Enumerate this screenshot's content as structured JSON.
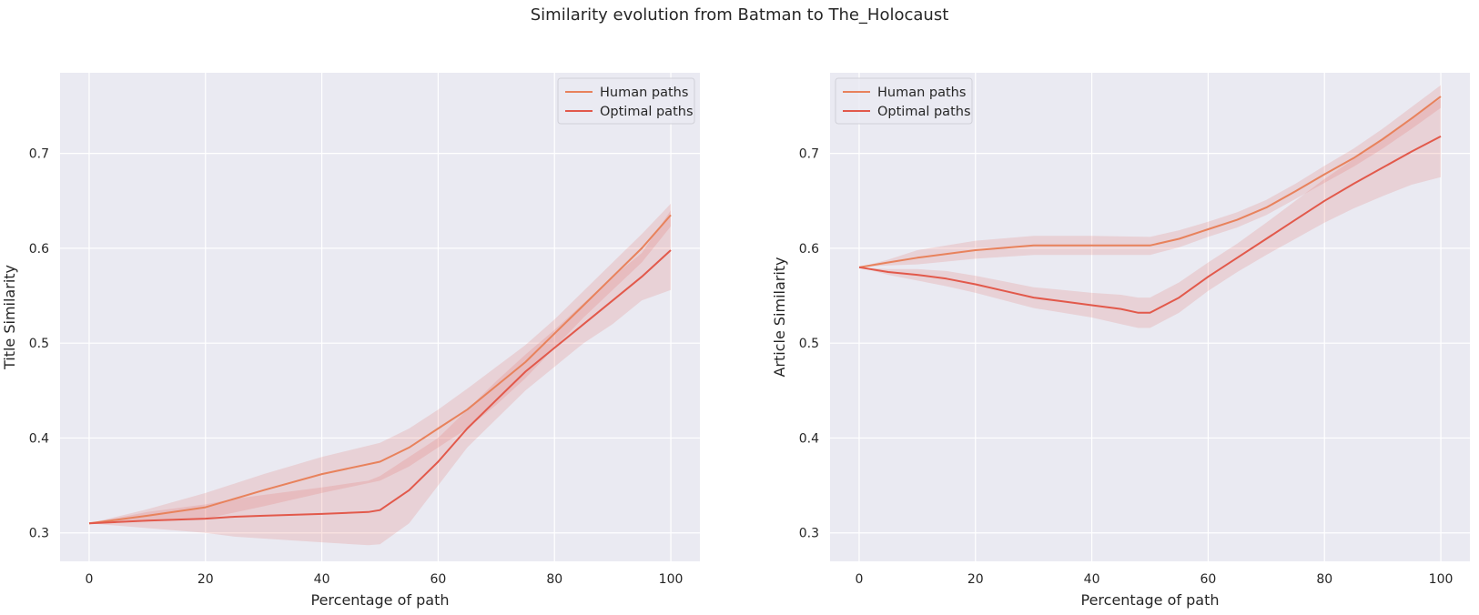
{
  "figure": {
    "title": "Similarity evolution from Batman to The_Holocaust"
  },
  "colors": {
    "human": "#e8825c",
    "optimal": "#e2594b",
    "band": "#e2594b",
    "axes_bg": "#eaeaf2",
    "grid": "#ffffff"
  },
  "chart_data": [
    {
      "type": "line",
      "title": "",
      "xlabel": "Percentage of path",
      "ylabel": "Title Similarity",
      "xlim": [
        -5,
        105
      ],
      "ylim": [
        0.27,
        0.785
      ],
      "xticks": [
        0,
        20,
        40,
        60,
        80,
        100
      ],
      "yticks": [
        0.3,
        0.4,
        0.5,
        0.6,
        0.7
      ],
      "grid": true,
      "legend": "upper right",
      "series": [
        {
          "name": "Human paths",
          "color": "#e8825c",
          "x": [
            0,
            10,
            20,
            30,
            40,
            50,
            55,
            60,
            65,
            70,
            75,
            80,
            85,
            90,
            95,
            100
          ],
          "y": [
            0.31,
            0.318,
            0.327,
            0.345,
            0.362,
            0.375,
            0.39,
            0.41,
            0.43,
            0.455,
            0.48,
            0.51,
            0.54,
            0.57,
            0.6,
            0.635
          ],
          "lower": [
            0.31,
            0.312,
            0.315,
            0.328,
            0.342,
            0.355,
            0.37,
            0.39,
            0.41,
            0.435,
            0.463,
            0.495,
            0.527,
            0.556,
            0.585,
            0.623
          ],
          "upper": [
            0.31,
            0.325,
            0.342,
            0.362,
            0.38,
            0.395,
            0.41,
            0.43,
            0.452,
            0.475,
            0.498,
            0.525,
            0.555,
            0.585,
            0.615,
            0.647
          ]
        },
        {
          "name": "Optimal paths",
          "color": "#e2594b",
          "x": [
            0,
            10,
            20,
            25,
            30,
            40,
            48,
            50,
            55,
            60,
            65,
            70,
            75,
            80,
            85,
            90,
            95,
            100
          ],
          "y": [
            0.31,
            0.313,
            0.315,
            0.317,
            0.318,
            0.32,
            0.322,
            0.324,
            0.345,
            0.375,
            0.41,
            0.44,
            0.47,
            0.495,
            0.52,
            0.545,
            0.57,
            0.598
          ],
          "lower": [
            0.31,
            0.305,
            0.3,
            0.296,
            0.294,
            0.29,
            0.287,
            0.288,
            0.31,
            0.35,
            0.39,
            0.42,
            0.45,
            0.475,
            0.5,
            0.52,
            0.545,
            0.556
          ],
          "upper": [
            0.31,
            0.322,
            0.33,
            0.336,
            0.34,
            0.348,
            0.355,
            0.36,
            0.38,
            0.4,
            0.43,
            0.46,
            0.488,
            0.514,
            0.542,
            0.57,
            0.595,
            0.64
          ]
        }
      ]
    },
    {
      "type": "line",
      "title": "",
      "xlabel": "Percentage of path",
      "ylabel": "Article Similarity",
      "xlim": [
        -5,
        105
      ],
      "ylim": [
        0.27,
        0.785
      ],
      "xticks": [
        0,
        20,
        40,
        60,
        80,
        100
      ],
      "yticks": [
        0.3,
        0.4,
        0.5,
        0.6,
        0.7
      ],
      "grid": true,
      "legend": "upper left",
      "series": [
        {
          "name": "Human paths",
          "color": "#e8825c",
          "x": [
            0,
            5,
            10,
            20,
            30,
            40,
            50,
            55,
            60,
            65,
            70,
            75,
            80,
            85,
            90,
            95,
            100
          ],
          "y": [
            0.58,
            0.585,
            0.59,
            0.598,
            0.603,
            0.603,
            0.603,
            0.61,
            0.62,
            0.63,
            0.643,
            0.66,
            0.678,
            0.695,
            0.715,
            0.737,
            0.76
          ],
          "lower": [
            0.58,
            0.582,
            0.583,
            0.589,
            0.593,
            0.593,
            0.593,
            0.601,
            0.612,
            0.622,
            0.635,
            0.652,
            0.669,
            0.686,
            0.705,
            0.726,
            0.748
          ],
          "upper": [
            0.58,
            0.588,
            0.598,
            0.608,
            0.613,
            0.613,
            0.612,
            0.619,
            0.628,
            0.638,
            0.651,
            0.668,
            0.687,
            0.705,
            0.726,
            0.749,
            0.772
          ]
        },
        {
          "name": "Optimal paths",
          "color": "#e2594b",
          "x": [
            0,
            5,
            10,
            15,
            20,
            25,
            30,
            35,
            40,
            45,
            48,
            50,
            55,
            60,
            65,
            70,
            75,
            80,
            85,
            90,
            95,
            100
          ],
          "y": [
            0.58,
            0.575,
            0.572,
            0.568,
            0.562,
            0.555,
            0.548,
            0.544,
            0.54,
            0.536,
            0.532,
            0.532,
            0.548,
            0.57,
            0.59,
            0.61,
            0.63,
            0.65,
            0.668,
            0.685,
            0.702,
            0.718
          ],
          "lower": [
            0.58,
            0.572,
            0.566,
            0.56,
            0.553,
            0.545,
            0.537,
            0.532,
            0.527,
            0.52,
            0.516,
            0.516,
            0.532,
            0.555,
            0.575,
            0.593,
            0.61,
            0.627,
            0.642,
            0.655,
            0.667,
            0.675
          ],
          "upper": [
            0.58,
            0.578,
            0.578,
            0.576,
            0.571,
            0.565,
            0.559,
            0.556,
            0.553,
            0.551,
            0.548,
            0.548,
            0.564,
            0.585,
            0.605,
            0.627,
            0.65,
            0.673,
            0.694,
            0.715,
            0.737,
            0.758
          ]
        }
      ]
    }
  ]
}
